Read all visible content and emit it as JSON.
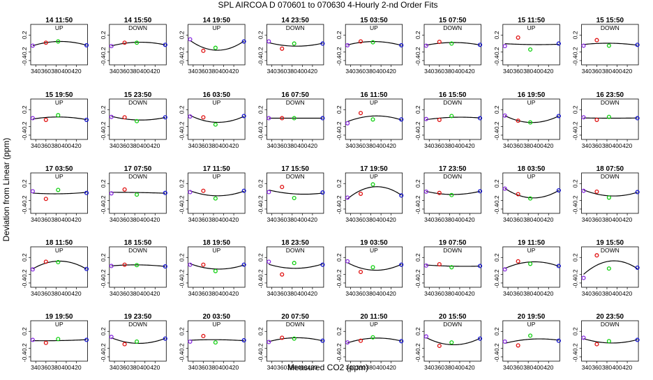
{
  "figure": {
    "title": "SPL   AIRCOA D   070601 to 070630   4-Hourly 2-nd Order Fits",
    "xlabel": "Measured CO2 (ppm)",
    "ylabel": "Deviation from Linear (ppm)"
  },
  "colors": {
    "curve": "#000000",
    "point_1": "#8a2be2",
    "point_2": "#e01010",
    "point_3": "#10d010",
    "point_4": "#1010d0"
  },
  "chart_data": {
    "type": "scatter",
    "x_standards": [
      334,
      360,
      384,
      440
    ],
    "xlim": [
      330,
      442
    ],
    "ylim": [
      -0.5,
      0.45
    ],
    "xticks": [
      340,
      360,
      380,
      400,
      420
    ],
    "yticks": [
      -0.4,
      -0.2,
      0.2
    ],
    "panels": [
      {
        "title": "14 11:50",
        "mode": "UP",
        "y": [
          -0.05,
          0.02,
          0.05,
          -0.04
        ]
      },
      {
        "title": "14 15:50",
        "mode": "DOWN",
        "y": [
          -0.06,
          0.02,
          0.02,
          -0.03
        ]
      },
      {
        "title": "14 19:50",
        "mode": "UP",
        "y": [
          0.1,
          -0.17,
          -0.1,
          0.05
        ]
      },
      {
        "title": "14 23:50",
        "mode": "DOWN",
        "y": [
          0.05,
          -0.12,
          0.0,
          0.0
        ]
      },
      {
        "title": "15 03:50",
        "mode": "UP",
        "y": [
          -0.04,
          0.05,
          0.03,
          -0.04
        ]
      },
      {
        "title": "15 07:50",
        "mode": "DOWN",
        "y": [
          -0.05,
          0.04,
          0.0,
          -0.03
        ]
      },
      {
        "title": "15 11:50",
        "mode": "UP",
        "y": [
          -0.06,
          0.14,
          -0.14,
          0.0
        ]
      },
      {
        "title": "15 15:50",
        "mode": "DOWN",
        "y": [
          -0.05,
          0.08,
          -0.05,
          -0.03
        ]
      },
      {
        "title": "15 19:50",
        "mode": "UP",
        "y": [
          0.0,
          -0.04,
          0.07,
          -0.04
        ]
      },
      {
        "title": "15 23:50",
        "mode": "DOWN",
        "y": [
          0.03,
          0.02,
          -0.07,
          0.02
        ]
      },
      {
        "title": "16 03:50",
        "mode": "UP",
        "y": [
          0.04,
          0.02,
          -0.15,
          0.05
        ]
      },
      {
        "title": "16 07:50",
        "mode": "DOWN",
        "y": [
          0.0,
          0.0,
          0.0,
          0.0
        ]
      },
      {
        "title": "16 11:50",
        "mode": "UP",
        "y": [
          -0.12,
          0.12,
          -0.03,
          -0.03
        ]
      },
      {
        "title": "16 15:50",
        "mode": "DOWN",
        "y": [
          -0.02,
          -0.04,
          0.05,
          0.0
        ]
      },
      {
        "title": "16 19:50",
        "mode": "UP",
        "y": [
          0.06,
          -0.06,
          -0.1,
          0.05
        ]
      },
      {
        "title": "16 23:50",
        "mode": "DOWN",
        "y": [
          0.02,
          -0.04,
          0.03,
          0.0
        ]
      },
      {
        "title": "17 03:50",
        "mode": "UP",
        "y": [
          0.02,
          -0.16,
          0.05,
          -0.02
        ]
      },
      {
        "title": "17 07:50",
        "mode": "DOWN",
        "y": [
          -0.03,
          0.06,
          -0.06,
          -0.02
        ]
      },
      {
        "title": "17 11:50",
        "mode": "UP",
        "y": [
          0.0,
          0.03,
          -0.15,
          0.03
        ]
      },
      {
        "title": "17 15:50",
        "mode": "DOWN",
        "y": [
          0.0,
          0.12,
          -0.14,
          -0.01
        ]
      },
      {
        "title": "17 19:50",
        "mode": "UP",
        "y": [
          -0.13,
          -0.04,
          0.18,
          -0.08
        ]
      },
      {
        "title": "17 23:50",
        "mode": "DOWN",
        "y": [
          0.01,
          -0.02,
          -0.07,
          0.02
        ]
      },
      {
        "title": "18 03:50",
        "mode": "UP",
        "y": [
          0.08,
          -0.05,
          -0.15,
          0.04
        ]
      },
      {
        "title": "18 07:50",
        "mode": "DOWN",
        "y": [
          0.03,
          0.01,
          -0.13,
          0.0
        ]
      },
      {
        "title": "18 11:50",
        "mode": "UP",
        "y": [
          -0.08,
          0.1,
          0.09,
          -0.07
        ]
      },
      {
        "title": "18 15:50",
        "mode": "DOWN",
        "y": [
          0.0,
          0.03,
          0.02,
          -0.01
        ]
      },
      {
        "title": "18 19:50",
        "mode": "UP",
        "y": [
          0.03,
          0.03,
          -0.12,
          0.03
        ]
      },
      {
        "title": "18 23:50",
        "mode": "DOWN",
        "y": [
          0.1,
          -0.2,
          0.07,
          0.03
        ]
      },
      {
        "title": "19 03:50",
        "mode": "UP",
        "y": [
          0.11,
          -0.14,
          -0.03,
          0.03
        ]
      },
      {
        "title": "19 07:50",
        "mode": "DOWN",
        "y": [
          0.01,
          0.04,
          -0.03,
          0.0
        ]
      },
      {
        "title": "19 11:50",
        "mode": "UP",
        "y": [
          -0.08,
          0.11,
          0.05,
          0.0
        ]
      },
      {
        "title": "19 15:50",
        "mode": "DOWN",
        "y": [
          -0.28,
          0.25,
          -0.06,
          -0.04
        ]
      },
      {
        "title": "19 19:50",
        "mode": "UP",
        "y": [
          0.0,
          -0.07,
          0.02,
          0.0
        ]
      },
      {
        "title": "19 23:50",
        "mode": "DOWN",
        "y": [
          0.07,
          -0.1,
          -0.04,
          0.03
        ]
      },
      {
        "title": "20 03:50",
        "mode": "UP",
        "y": [
          -0.04,
          0.09,
          -0.06,
          -0.01
        ]
      },
      {
        "title": "20 07:50",
        "mode": "DOWN",
        "y": [
          -0.05,
          0.05,
          0.03,
          -0.02
        ]
      },
      {
        "title": "20 11:50",
        "mode": "UP",
        "y": [
          -0.06,
          -0.02,
          0.06,
          -0.03
        ]
      },
      {
        "title": "20 15:50",
        "mode": "DOWN",
        "y": [
          0.08,
          -0.14,
          -0.06,
          0.03
        ]
      },
      {
        "title": "20 19:50",
        "mode": "UP",
        "y": [
          -0.04,
          -0.13,
          0.1,
          -0.02
        ]
      },
      {
        "title": "20 23:50",
        "mode": "DOWN",
        "y": [
          0.05,
          -0.1,
          -0.03,
          0.0
        ]
      }
    ]
  }
}
